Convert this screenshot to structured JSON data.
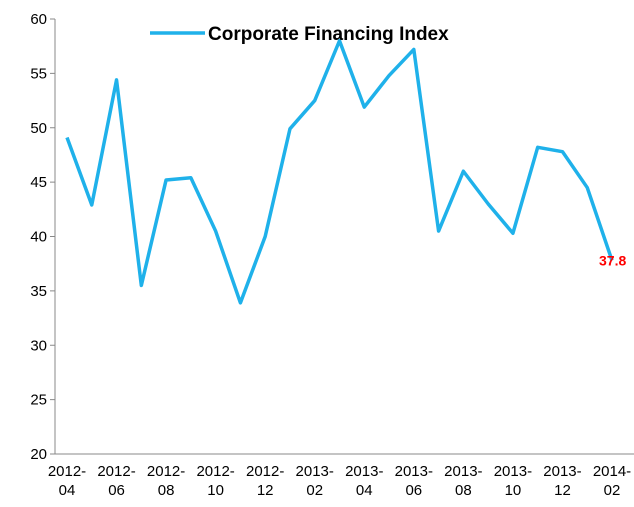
{
  "chart_data": {
    "type": "line",
    "categories": [
      "2012-04",
      null,
      "2012-06",
      null,
      "2012-08",
      null,
      "2012-10",
      null,
      "2012-12",
      null,
      "2013-02",
      null,
      "2013-04",
      null,
      "2013-06",
      null,
      "2013-08",
      null,
      "2013-10",
      null,
      "2013-12",
      null,
      "2014-02"
    ],
    "series": [
      {
        "name": "Corporate Financing Index",
        "color": "#1fb1ea",
        "values": [
          49.1,
          42.9,
          54.4,
          35.5,
          45.2,
          45.4,
          40.5,
          33.9,
          40.0,
          49.9,
          52.5,
          58.0,
          51.9,
          54.8,
          57.2,
          40.5,
          46.0,
          43.0,
          40.3,
          48.2,
          47.8,
          44.5,
          37.8
        ],
        "value_labels": [
          null,
          null,
          null,
          null,
          null,
          null,
          null,
          null,
          null,
          null,
          null,
          null,
          null,
          null,
          null,
          null,
          null,
          null,
          null,
          null,
          null,
          null,
          "37.8"
        ]
      }
    ],
    "ylim": [
      20,
      60
    ],
    "yticks": [
      20,
      25,
      30,
      35,
      40,
      45,
      50,
      55,
      60
    ],
    "grid": false
  }
}
